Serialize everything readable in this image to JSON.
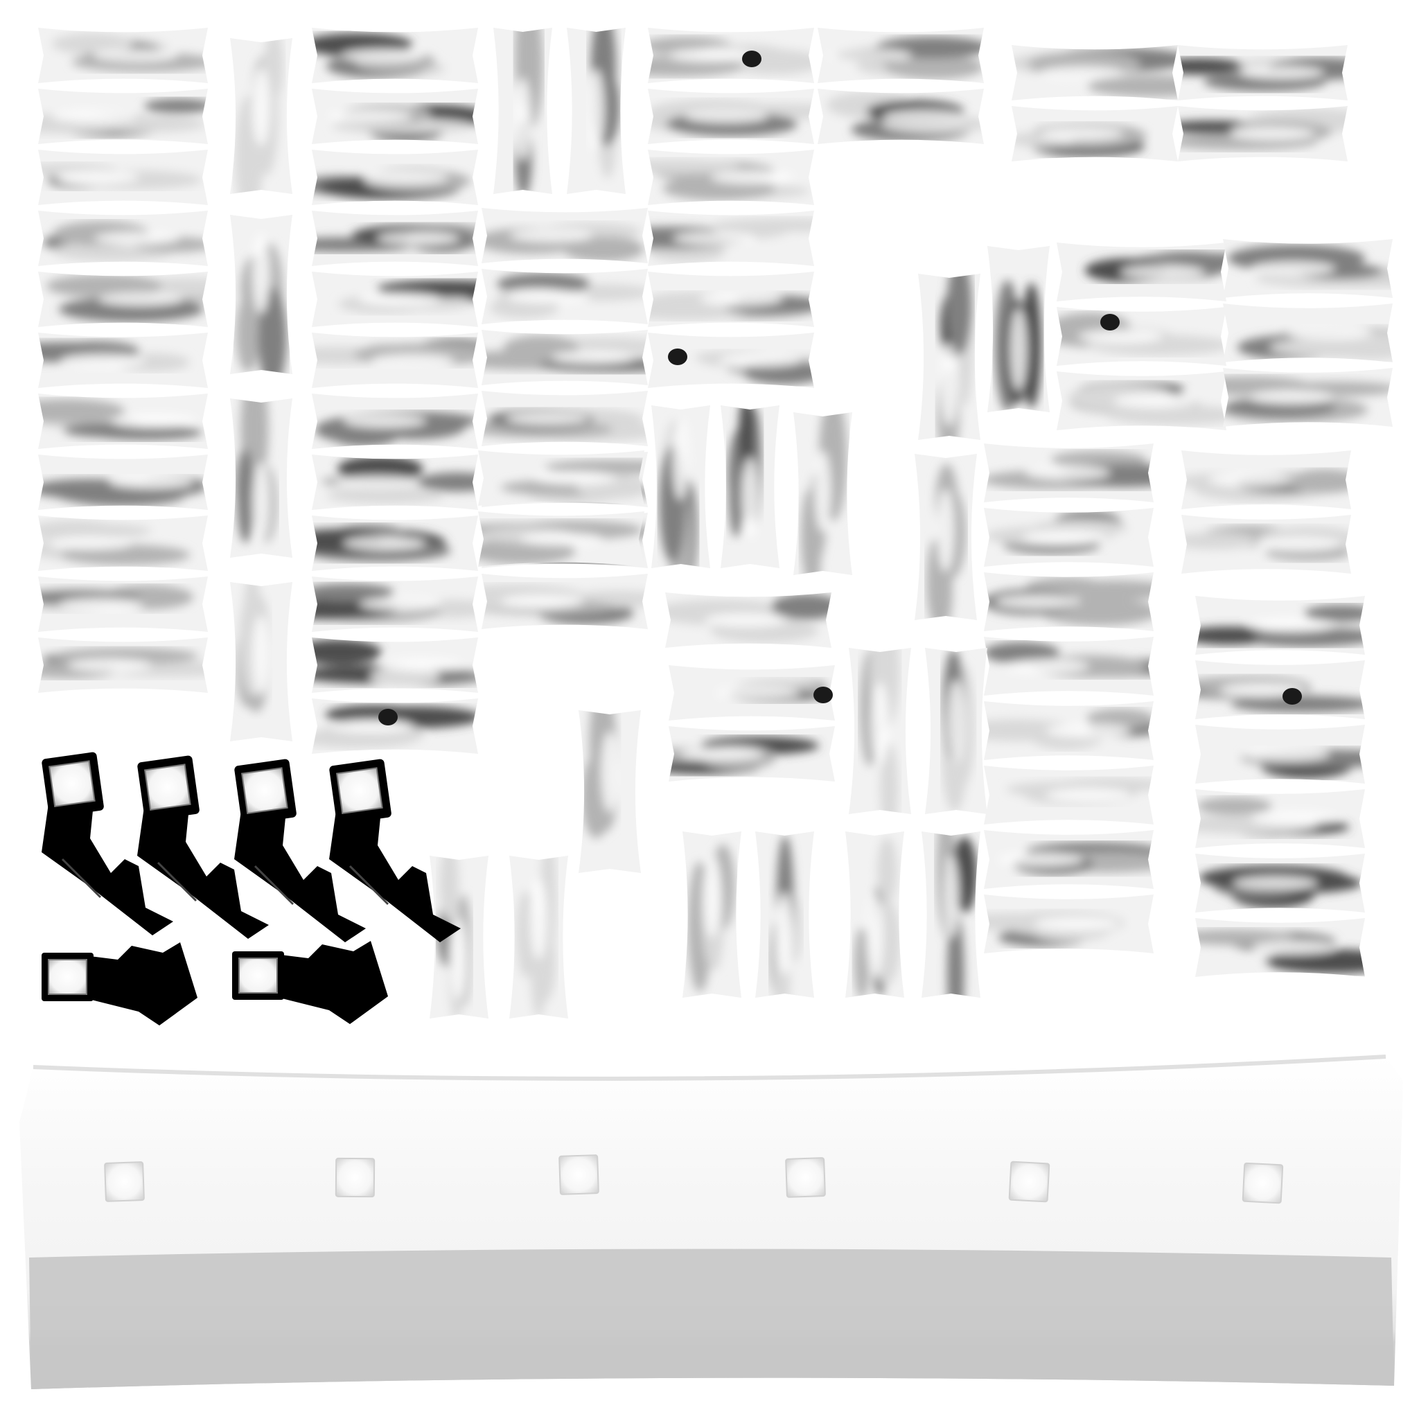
{
  "texture_atlas": {
    "background_color": "#ffffff",
    "ink_color": "#000000",
    "shading_palette": [
      "#ffffff",
      "#f2f2f2",
      "#d9d9d9",
      "#b3b3b3",
      "#808080",
      "#4d4d4d",
      "#1a1a1a"
    ],
    "band_light_color": "#f4f4f4",
    "band_shadow_color": "#c7c7c7",
    "band_window_color": "#f7f7f7",
    "island_kinds": [
      "horizontal-strip",
      "vertical-strip",
      "dark-bracket",
      "light-square-tile",
      "curved-band"
    ],
    "bracket_count": 6,
    "band_tile_count": 6
  }
}
